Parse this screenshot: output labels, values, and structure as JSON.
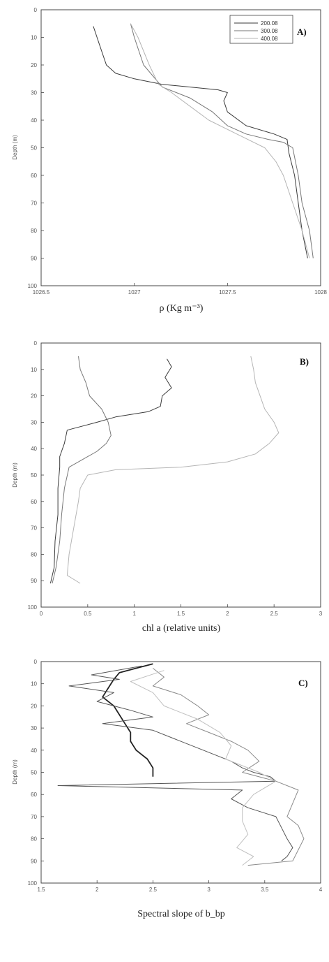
{
  "chart_data": [
    {
      "type": "line",
      "panel_label": "A)",
      "xlabel": "ρ (Kg m⁻³)",
      "ylabel": "Depth (m)",
      "xlim": [
        1026.5,
        1028
      ],
      "ylim": [
        0,
        100
      ],
      "y_inverted": true,
      "xticks": [
        "1026.5",
        "1027",
        "1027.5",
        "1028"
      ],
      "yticks": [
        "0",
        "10",
        "20",
        "30",
        "40",
        "50",
        "60",
        "70",
        "80",
        "90",
        "100"
      ],
      "legend": {
        "placement": "top-right",
        "entries": [
          "200.08",
          "300.08",
          "400.08"
        ]
      },
      "series": [
        {
          "name": "200.08",
          "color": "#3a3a3a",
          "points": [
            [
              1026.78,
              6
            ],
            [
              1026.8,
              10
            ],
            [
              1026.83,
              16
            ],
            [
              1026.85,
              20
            ],
            [
              1026.9,
              23
            ],
            [
              1027.0,
              25
            ],
            [
              1027.15,
              27
            ],
            [
              1027.3,
              28
            ],
            [
              1027.45,
              29
            ],
            [
              1027.5,
              30
            ],
            [
              1027.48,
              33
            ],
            [
              1027.5,
              37
            ],
            [
              1027.6,
              42
            ],
            [
              1027.75,
              45
            ],
            [
              1027.82,
              47
            ],
            [
              1027.83,
              52
            ],
            [
              1027.86,
              60
            ],
            [
              1027.88,
              70
            ],
            [
              1027.9,
              80
            ],
            [
              1027.93,
              90
            ]
          ]
        },
        {
          "name": "300.08",
          "color": "#777777",
          "points": [
            [
              1026.98,
              5
            ],
            [
              1027.0,
              10
            ],
            [
              1027.05,
              20
            ],
            [
              1027.15,
              28
            ],
            [
              1027.3,
              32
            ],
            [
              1027.42,
              37
            ],
            [
              1027.5,
              42
            ],
            [
              1027.6,
              45
            ],
            [
              1027.72,
              47
            ],
            [
              1027.8,
              48
            ],
            [
              1027.85,
              50
            ],
            [
              1027.88,
              60
            ],
            [
              1027.9,
              70
            ],
            [
              1027.94,
              80
            ],
            [
              1027.96,
              90
            ]
          ]
        },
        {
          "name": "400.08",
          "color": "#b5b5b5",
          "points": [
            [
              1026.98,
              5
            ],
            [
              1027.02,
              10
            ],
            [
              1027.08,
              20
            ],
            [
              1027.13,
              27
            ],
            [
              1027.2,
              30
            ],
            [
              1027.3,
              35
            ],
            [
              1027.4,
              40
            ],
            [
              1027.55,
              45
            ],
            [
              1027.7,
              50
            ],
            [
              1027.76,
              55
            ],
            [
              1027.8,
              60
            ],
            [
              1027.85,
              70
            ],
            [
              1027.9,
              80
            ],
            [
              1027.94,
              90
            ]
          ]
        }
      ]
    },
    {
      "type": "line",
      "panel_label": "B)",
      "xlabel": "chl a (relative units)",
      "ylabel": "Depth (m)",
      "xlim": [
        0,
        3
      ],
      "ylim": [
        0,
        100
      ],
      "y_inverted": true,
      "xticks": [
        "0",
        "0.5",
        "1",
        "1.5",
        "2",
        "2.5",
        "3"
      ],
      "yticks": [
        "0",
        "10",
        "20",
        "30",
        "40",
        "50",
        "60",
        "70",
        "80",
        "90",
        "100"
      ],
      "series": [
        {
          "name": "",
          "color": "#3a3a3a",
          "points": [
            [
              1.35,
              6
            ],
            [
              1.4,
              9
            ],
            [
              1.33,
              13
            ],
            [
              1.4,
              17
            ],
            [
              1.3,
              20
            ],
            [
              1.28,
              24
            ],
            [
              1.15,
              26
            ],
            [
              0.8,
              28
            ],
            [
              0.6,
              30
            ],
            [
              0.28,
              33
            ],
            [
              0.25,
              38
            ],
            [
              0.2,
              43
            ],
            [
              0.2,
              47
            ],
            [
              0.18,
              55
            ],
            [
              0.18,
              65
            ],
            [
              0.15,
              75
            ],
            [
              0.14,
              85
            ],
            [
              0.1,
              91
            ]
          ]
        },
        {
          "name": "",
          "color": "#777777",
          "points": [
            [
              0.4,
              5
            ],
            [
              0.42,
              10
            ],
            [
              0.48,
              15
            ],
            [
              0.52,
              20
            ],
            [
              0.65,
              25
            ],
            [
              0.72,
              30
            ],
            [
              0.75,
              35
            ],
            [
              0.7,
              38
            ],
            [
              0.6,
              41
            ],
            [
              0.45,
              44
            ],
            [
              0.3,
              47
            ],
            [
              0.25,
              55
            ],
            [
              0.22,
              65
            ],
            [
              0.2,
              75
            ],
            [
              0.16,
              85
            ],
            [
              0.12,
              91
            ]
          ]
        },
        {
          "name": "",
          "color": "#b5b5b5",
          "points": [
            [
              2.25,
              5
            ],
            [
              2.28,
              10
            ],
            [
              2.3,
              15
            ],
            [
              2.35,
              20
            ],
            [
              2.4,
              25
            ],
            [
              2.5,
              30
            ],
            [
              2.55,
              34
            ],
            [
              2.45,
              38
            ],
            [
              2.3,
              42
            ],
            [
              2.0,
              45
            ],
            [
              1.5,
              47
            ],
            [
              0.8,
              48
            ],
            [
              0.5,
              50
            ],
            [
              0.42,
              55
            ],
            [
              0.4,
              60
            ],
            [
              0.35,
              70
            ],
            [
              0.3,
              80
            ],
            [
              0.28,
              88
            ],
            [
              0.42,
              91
            ]
          ]
        }
      ]
    },
    {
      "type": "line",
      "panel_label": "C)",
      "xlabel": "Spectral slope of b_bp",
      "ylabel": "Depth (m)",
      "xlim": [
        1.5,
        4
      ],
      "ylim": [
        0,
        100
      ],
      "y_inverted": true,
      "xticks": [
        "1.5",
        "2",
        "2.5",
        "3",
        "3.5",
        "4"
      ],
      "yticks": [
        "0",
        "10",
        "20",
        "30",
        "40",
        "50",
        "60",
        "70",
        "80",
        "90",
        "100"
      ],
      "series": [
        {
          "name": "",
          "color": "#222222",
          "points": [
            [
              2.5,
              1
            ],
            [
              2.35,
              3
            ],
            [
              2.2,
              5
            ],
            [
              2.15,
              8
            ],
            [
              2.1,
              12
            ],
            [
              2.05,
              16
            ],
            [
              2.15,
              20
            ],
            [
              2.2,
              24
            ],
            [
              2.25,
              28
            ],
            [
              2.3,
              32
            ],
            [
              2.3,
              36
            ],
            [
              2.35,
              40
            ],
            [
              2.45,
              44
            ],
            [
              2.5,
              48
            ],
            [
              2.5,
              52
            ]
          ]
        },
        {
          "name": "",
          "color": "#555555",
          "points": [
            [
              2.4,
              2
            ],
            [
              1.95,
              6
            ],
            [
              2.2,
              8
            ],
            [
              1.75,
              11
            ],
            [
              2.15,
              14
            ],
            [
              2.0,
              18
            ],
            [
              2.3,
              22
            ],
            [
              2.5,
              25
            ],
            [
              2.05,
              28
            ],
            [
              2.5,
              31
            ],
            [
              2.7,
              35
            ],
            [
              2.95,
              40
            ],
            [
              3.2,
              45
            ],
            [
              3.3,
              48
            ],
            [
              3.4,
              50
            ],
            [
              3.55,
              52
            ],
            [
              3.6,
              54
            ],
            [
              1.65,
              56
            ],
            [
              3.3,
              58
            ],
            [
              3.2,
              62
            ],
            [
              3.35,
              66
            ],
            [
              3.6,
              70
            ],
            [
              3.65,
              75
            ],
            [
              3.7,
              80
            ],
            [
              3.75,
              84
            ],
            [
              3.7,
              88
            ],
            [
              3.65,
              90
            ]
          ]
        },
        {
          "name": "",
          "color": "#8a8a8a",
          "points": [
            [
              2.5,
              3
            ],
            [
              2.6,
              7
            ],
            [
              2.5,
              11
            ],
            [
              2.75,
              15
            ],
            [
              2.9,
              20
            ],
            [
              3.0,
              24
            ],
            [
              2.8,
              28
            ],
            [
              3.0,
              32
            ],
            [
              3.2,
              36
            ],
            [
              3.35,
              40
            ],
            [
              3.45,
              45
            ],
            [
              3.3,
              50
            ],
            [
              3.6,
              54
            ],
            [
              3.8,
              58
            ],
            [
              3.75,
              64
            ],
            [
              3.7,
              70
            ],
            [
              3.8,
              74
            ],
            [
              3.85,
              80
            ],
            [
              3.8,
              85
            ],
            [
              3.75,
              90
            ],
            [
              3.35,
              92
            ]
          ]
        },
        {
          "name": "",
          "color": "#c0c0c0",
          "points": [
            [
              2.6,
              4
            ],
            [
              2.3,
              9
            ],
            [
              2.5,
              14
            ],
            [
              2.6,
              20
            ],
            [
              2.9,
              26
            ],
            [
              3.1,
              32
            ],
            [
              3.2,
              38
            ],
            [
              3.15,
              44
            ],
            [
              3.45,
              50
            ],
            [
              3.6,
              54
            ],
            [
              3.4,
              60
            ],
            [
              3.3,
              66
            ],
            [
              3.3,
              72
            ],
            [
              3.35,
              78
            ],
            [
              3.25,
              84
            ],
            [
              3.4,
              88
            ],
            [
              3.3,
              92
            ]
          ]
        }
      ]
    }
  ]
}
